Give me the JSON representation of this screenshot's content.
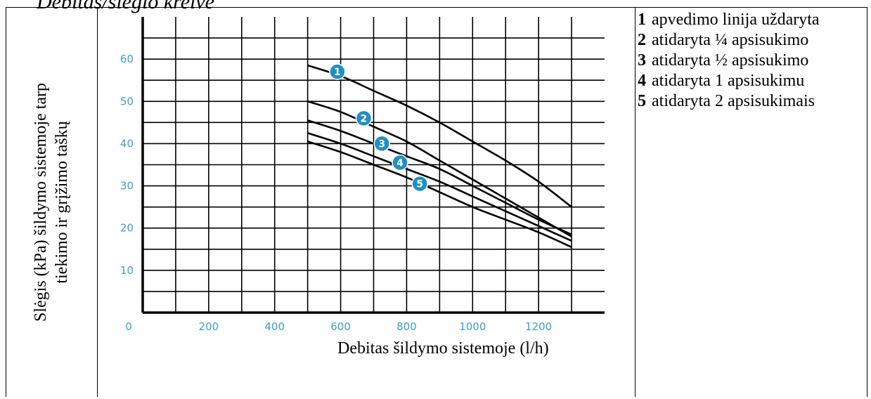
{
  "header": {
    "title": "Debitas/slėgio kreivė"
  },
  "y_axis_caption": {
    "line1": "Slėgis (kPa) šildymo sistemoje tarp",
    "line2": "tiekimo ir grįžimo taškų"
  },
  "legend": {
    "items": [
      {
        "num": "1",
        "text": "apvedimo linija uždaryta"
      },
      {
        "num": "2",
        "text": "atidaryta ¼ apsisukimo"
      },
      {
        "num": "3",
        "text": "atidaryta ½ apsisukimo"
      },
      {
        "num": "4",
        "text": "atidaryta 1 apsisukimu"
      },
      {
        "num": "5",
        "text": "atidaryta 2 apsisukimais"
      }
    ]
  },
  "colors": {
    "tick_label": "#3aa0cc",
    "marker": "#1f8fc4",
    "grid": "#000000",
    "curve": "#000000"
  },
  "chart_data": {
    "type": "line",
    "title": "",
    "xlabel": "Debitas šildymo sistemoje (l/h)",
    "ylabel": "Slėgis (kPa) šildymo sistemoje tarp tiekimo ir grįžimo taškų",
    "xlim": [
      0,
      1400
    ],
    "ylim": [
      0,
      70
    ],
    "x_ticks": [
      "0",
      "200",
      "400",
      "600",
      "800",
      "1000",
      "1200"
    ],
    "y_ticks": [
      "10",
      "20",
      "30",
      "40",
      "50",
      "60"
    ],
    "grid": true,
    "series": [
      {
        "name": "1",
        "x": [
          500,
          600,
          700,
          800,
          900,
          1000,
          1100,
          1200,
          1300
        ],
        "y": [
          58.5,
          56,
          52.5,
          49,
          45,
          40.5,
          36,
          31,
          25
        ]
      },
      {
        "name": "2",
        "x": [
          500,
          600,
          700,
          800,
          900,
          1000,
          1100,
          1200,
          1300
        ],
        "y": [
          50,
          47.5,
          44,
          40.5,
          36,
          31.5,
          27,
          22.5,
          18
        ]
      },
      {
        "name": "3",
        "x": [
          500,
          600,
          700,
          800,
          900,
          1000,
          1100,
          1200,
          1300
        ],
        "y": [
          45.5,
          43,
          40,
          37,
          34,
          30,
          26,
          22,
          18.5
        ]
      },
      {
        "name": "4",
        "x": [
          500,
          600,
          700,
          800,
          900,
          1000,
          1100,
          1200,
          1300
        ],
        "y": [
          42.5,
          40,
          37,
          34,
          31,
          27.5,
          24,
          20.5,
          17
        ]
      },
      {
        "name": "5",
        "x": [
          500,
          600,
          700,
          800,
          900,
          1000,
          1100,
          1200,
          1300
        ],
        "y": [
          40.5,
          38,
          35,
          32,
          28.5,
          25,
          22,
          19,
          15.5
        ]
      }
    ],
    "markers": [
      {
        "label": "1",
        "x": 590,
        "y": 57
      },
      {
        "label": "2",
        "x": 670,
        "y": 46
      },
      {
        "label": "3",
        "x": 725,
        "y": 40
      },
      {
        "label": "4",
        "x": 780,
        "y": 35.5
      },
      {
        "label": "5",
        "x": 840,
        "y": 30.5
      }
    ]
  }
}
